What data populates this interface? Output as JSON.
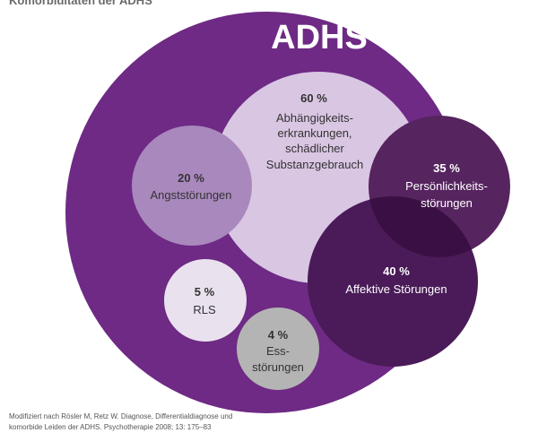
{
  "title": "Komorbiditäten der ADHS",
  "diagram": {
    "main": "ADHS",
    "circles": [
      {
        "id": "abhaengigkeit",
        "percent": "60 %",
        "lines": [
          "Abhängigkeits-",
          "erkrankungen,",
          "schädlicher",
          "Substanzgebrauch"
        ],
        "color": "#d9c6e3",
        "text_color": "#333333"
      },
      {
        "id": "angst",
        "percent": "20 %",
        "lines": [
          "Angststörungen"
        ],
        "color": "#a988bd",
        "text_color": "#333333"
      },
      {
        "id": "persoenlichkeit",
        "percent": "35 %",
        "lines": [
          "Persönlichkeits-",
          "störungen"
        ],
        "color": "#56245f",
        "text_color": "#ffffff"
      },
      {
        "id": "affektiv",
        "percent": "40 %",
        "lines": [
          "Affektive Störungen"
        ],
        "color": "#4a1b58",
        "text_color": "#ffffff"
      },
      {
        "id": "rls",
        "percent": "5 %",
        "lines": [
          "RLS"
        ],
        "color": "#eae1ef",
        "text_color": "#333333"
      },
      {
        "id": "ess",
        "percent": "4 %",
        "lines": [
          "Ess-",
          "störungen"
        ],
        "color": "#b4b4b4",
        "text_color": "#333333"
      }
    ],
    "colors": {
      "outer": "#6e2a84",
      "overlap_dark": "#3a1044"
    }
  },
  "footer": {
    "lines": [
      "Modifiziert nach Rösler M, Retz W. Diagnose, Differentialdiagnose und",
      "komorbide Leiden der ADHS. Psychotherapie 2008; 13: 175–83"
    ]
  }
}
